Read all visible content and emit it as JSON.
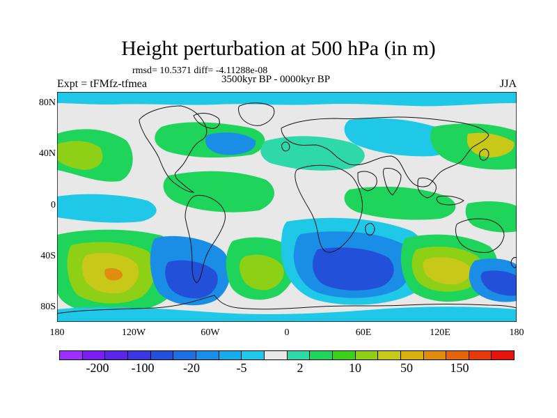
{
  "header": {
    "title": "Height perturbation at 500 hPa (in m)",
    "stats": "rmsd= 10.5371 diff= -4.11288e-08",
    "experiment": "Expt = tFMfz-tfmea",
    "period": "3500kyr BP - 0000kyr BP",
    "season": "JJA"
  },
  "map": {
    "lat_range": [
      -90,
      90
    ],
    "lon_range": [
      -180,
      180
    ],
    "lat_ticks": [
      {
        "value": 80,
        "label": "80N"
      },
      {
        "value": 40,
        "label": "40N"
      },
      {
        "value": 0,
        "label": "0"
      },
      {
        "value": -40,
        "label": "40S"
      },
      {
        "value": -80,
        "label": "80S"
      }
    ],
    "lon_ticks": [
      {
        "value": -180,
        "label": "180"
      },
      {
        "value": -120,
        "label": "120W"
      },
      {
        "value": -60,
        "label": "60W"
      },
      {
        "value": 0,
        "label": "0"
      },
      {
        "value": 60,
        "label": "60E"
      },
      {
        "value": 120,
        "label": "120E"
      },
      {
        "value": 180,
        "label": "180"
      }
    ],
    "background_color": "#e8e8e8"
  },
  "colorbar": {
    "colors": [
      "#9b30ff",
      "#7a1df0",
      "#5a25e8",
      "#3b36e0",
      "#2250d8",
      "#1f6fe0",
      "#1a8ee6",
      "#16acea",
      "#1ec8e6",
      "#e8e8e8",
      "#2ed8a8",
      "#1fd45a",
      "#3ad01c",
      "#8ed016",
      "#c8c818",
      "#d8b012",
      "#e08c10",
      "#e4640e",
      "#e63a0c",
      "#e4140c"
    ],
    "labels": [
      "-200",
      "-100",
      "-20",
      "-5",
      "2",
      "10",
      "50",
      "150"
    ]
  }
}
